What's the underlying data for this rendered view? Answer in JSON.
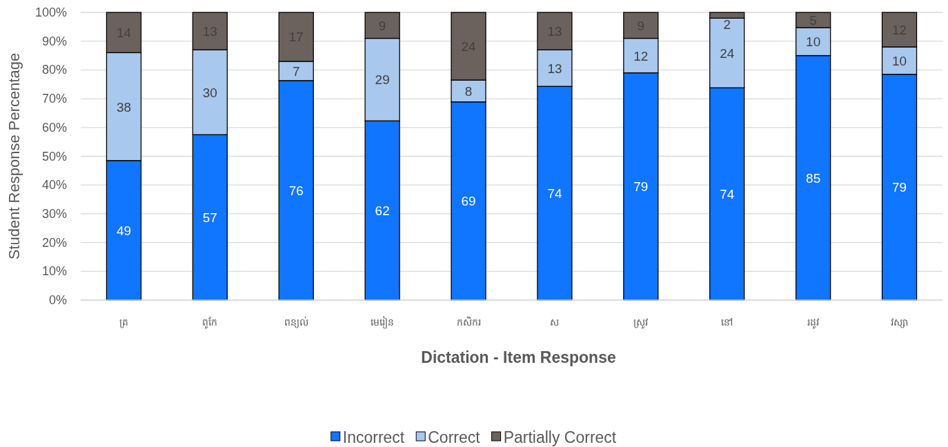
{
  "chart_data": {
    "type": "bar",
    "stacked": true,
    "xlabel": "Dictation - Item Response",
    "ylabel": "Student Response Percentage",
    "categories": [
      "គ្រ",
      "ពូកែ",
      "ពន្យល់",
      "មេរៀន",
      "កសិករ",
      "ស",
      "ស្រូវ",
      "នៅ",
      "រដូវ",
      "វស្សា"
    ],
    "series": [
      {
        "name": "Incorrect",
        "color": "#1075ff",
        "values": [
          48.5,
          57.5,
          76.3,
          62.3,
          68.9,
          74.3,
          79,
          73.8,
          85,
          78.5
        ],
        "value_labels": [
          "49",
          "57",
          "76",
          "62",
          "69",
          "74",
          "79",
          "74",
          "85",
          "79"
        ]
      },
      {
        "name": "Correct",
        "color": "#a9c8ee",
        "values": [
          37.5,
          29.5,
          6.7,
          28.7,
          7.6,
          12.7,
          12,
          24.2,
          9.7,
          9.5
        ],
        "value_labels": [
          "38",
          "30",
          "7",
          "29",
          "8",
          "13",
          "12",
          "24",
          "10",
          "10"
        ]
      },
      {
        "name": "Partially Correct",
        "color": "#6b625e",
        "values": [
          14,
          13,
          17,
          9,
          23.5,
          13,
          9,
          2,
          5.3,
          12
        ],
        "value_labels": [
          "14",
          "13",
          "17",
          "9",
          "24",
          "13",
          "9",
          "2",
          "5",
          "12"
        ]
      }
    ],
    "ylim": [
      0,
      100
    ],
    "yticks": [
      {
        "value": 0,
        "label": "0%"
      },
      {
        "value": 10,
        "label": "10%"
      },
      {
        "value": 20,
        "label": "20%"
      },
      {
        "value": 30,
        "label": "30%"
      },
      {
        "value": 40,
        "label": "40%"
      },
      {
        "value": 50,
        "label": "50%"
      },
      {
        "value": 60,
        "label": "60%"
      },
      {
        "value": 70,
        "label": "70%"
      },
      {
        "value": 80,
        "label": "80%"
      },
      {
        "value": 90,
        "label": "90%"
      },
      {
        "value": 100,
        "label": "100%"
      }
    ],
    "grid": "y",
    "legend": "bottom"
  }
}
